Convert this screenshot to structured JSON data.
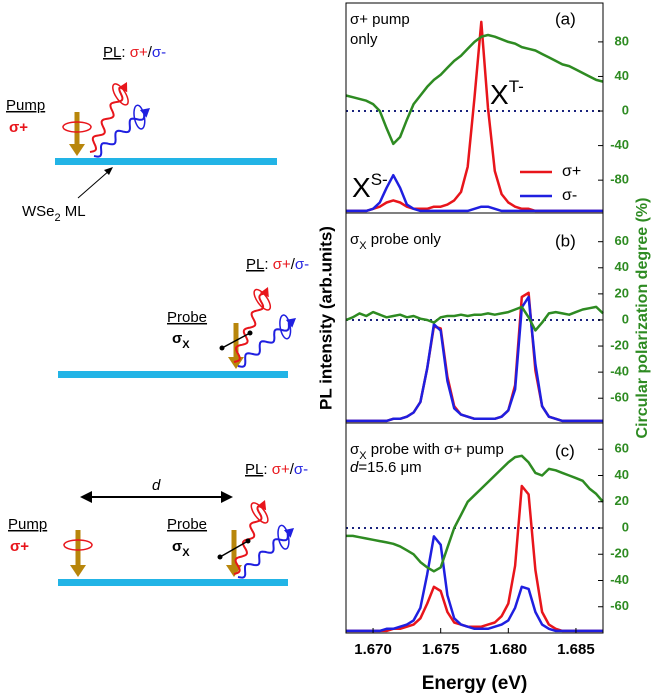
{
  "diagram": {
    "panels": [
      {
        "pl": "PL",
        "colon": ": ",
        "plus": "σ+",
        "slash": "/",
        "minus": "σ-",
        "pump": "Pump",
        "pump_sigma": "σ+",
        "material": "WSe",
        "material_sub": "2",
        "material_rest": " ML"
      },
      {
        "pl": "PL",
        "colon": ": ",
        "plus": "σ+",
        "slash": "/",
        "minus": "σ-",
        "probe": "Probe",
        "probe_sigma": "σ",
        "probe_sub": "X"
      },
      {
        "distance": "d",
        "pl": "PL",
        "colon": ": ",
        "plus": "σ+",
        "slash": "/",
        "minus": "σ-",
        "pump": "Pump",
        "pump_sigma": "σ+",
        "probe": "Probe",
        "probe_sigma": "σ",
        "probe_sub": "X"
      }
    ]
  },
  "chart_data": [
    {
      "type": "line",
      "title_lines": [
        "σ+ pump",
        "only"
      ],
      "panel_label": "(a)",
      "peak_labels": [
        {
          "text": "X",
          "sup": "T-"
        },
        {
          "text": "X",
          "sup": "S-"
        }
      ],
      "ylabel": "PL intensity (arb.units)",
      "y2label": "Circular polarization degree (%)",
      "legend": "lower right",
      "x": [
        1.668,
        1.6685,
        1.669,
        1.6695,
        1.67,
        1.6705,
        1.671,
        1.6715,
        1.672,
        1.6725,
        1.673,
        1.6735,
        1.674,
        1.6745,
        1.675,
        1.6755,
        1.676,
        1.6765,
        1.677,
        1.6775,
        1.678,
        1.6785,
        1.679,
        1.6795,
        1.68,
        1.6805,
        1.681,
        1.6815,
        1.682,
        1.6825,
        1.683,
        1.6835,
        1.684,
        1.6845,
        1.685,
        1.6855,
        1.686,
        1.6865,
        1.687
      ],
      "xlim": [
        1.668,
        1.687
      ],
      "ylim": [
        0,
        100
      ],
      "y2lim": [
        -118,
        125
      ],
      "y2ticks": [
        80,
        40,
        0,
        -40,
        -80
      ],
      "series": [
        {
          "name": "σ+",
          "color": "#e8151b",
          "values": [
            1,
            1,
            1,
            1,
            2,
            3,
            5,
            6,
            5,
            3,
            2,
            2,
            2,
            3,
            3,
            4,
            6,
            10,
            22,
            55,
            91,
            50,
            20,
            9,
            5,
            3,
            2,
            2,
            1,
            1,
            1,
            1,
            1,
            1,
            1,
            1,
            1,
            1,
            1
          ]
        },
        {
          "name": "σ-",
          "color": "#1f1fe0",
          "values": [
            1,
            1,
            1,
            1,
            2,
            5,
            12,
            18,
            12,
            4,
            2,
            1,
            1,
            1,
            1,
            1,
            1,
            1,
            1,
            2,
            3,
            3,
            2,
            1,
            1,
            1,
            1,
            1,
            1,
            1,
            1,
            1,
            1,
            1,
            1,
            1,
            1,
            1,
            1
          ]
        },
        {
          "color": "#2e8b22",
          "axis": "y2",
          "values": [
            18,
            16,
            14,
            12,
            8,
            0,
            -20,
            -38,
            -30,
            -10,
            8,
            18,
            28,
            36,
            42,
            50,
            58,
            64,
            72,
            80,
            86,
            88,
            86,
            83,
            80,
            78,
            74,
            72,
            70,
            66,
            62,
            58,
            54,
            52,
            48,
            44,
            40,
            36,
            34
          ]
        }
      ]
    },
    {
      "type": "line",
      "title": {
        "main": "σ",
        "sub": "X",
        "rest": " probe only"
      },
      "panel_label": "(b)",
      "x": [
        1.668,
        1.6685,
        1.669,
        1.6695,
        1.67,
        1.6705,
        1.671,
        1.6715,
        1.672,
        1.6725,
        1.673,
        1.6735,
        1.674,
        1.6745,
        1.675,
        1.6755,
        1.676,
        1.6765,
        1.677,
        1.6775,
        1.678,
        1.6785,
        1.679,
        1.6795,
        1.68,
        1.6805,
        1.681,
        1.6815,
        1.682,
        1.6825,
        1.683,
        1.6835,
        1.684,
        1.6845,
        1.685,
        1.6855,
        1.686,
        1.6865,
        1.687
      ],
      "xlim": [
        1.668,
        1.687
      ],
      "ylim": [
        0,
        100
      ],
      "y2lim": [
        -79,
        82
      ],
      "y2ticks": [
        60,
        40,
        20,
        0,
        -20,
        -40,
        -60
      ],
      "series": [
        {
          "color": "#e8151b",
          "values": [
            1,
            1,
            1,
            1,
            1,
            1,
            1,
            2,
            2,
            3,
            5,
            10,
            26,
            46,
            45,
            22,
            8,
            4,
            3,
            2,
            2,
            2,
            2,
            3,
            6,
            18,
            60,
            62,
            25,
            8,
            3,
            2,
            1,
            1,
            1,
            1,
            1,
            1,
            1
          ]
        },
        {
          "color": "#1f1fe0",
          "values": [
            1,
            1,
            1,
            1,
            1,
            1,
            1,
            2,
            2,
            3,
            5,
            10,
            26,
            47,
            44,
            20,
            7,
            4,
            3,
            2,
            2,
            2,
            2,
            3,
            6,
            16,
            55,
            60,
            28,
            8,
            3,
            2,
            1,
            1,
            1,
            1,
            1,
            1,
            1
          ]
        },
        {
          "color": "#2e8b22",
          "axis": "y2",
          "values": [
            0,
            2,
            5,
            3,
            6,
            4,
            2,
            3,
            4,
            2,
            3,
            1,
            0,
            -2,
            2,
            3,
            3,
            4,
            3,
            4,
            4,
            5,
            4,
            5,
            6,
            8,
            10,
            2,
            -8,
            -2,
            5,
            6,
            5,
            4,
            6,
            8,
            9,
            10,
            5
          ]
        }
      ]
    },
    {
      "type": "line",
      "title": {
        "main": "σ",
        "sub": "X",
        "rest": " probe with σ+ pump"
      },
      "note": {
        "italic": "d",
        "rest": "=15.6 μm"
      },
      "panel_label": "(c)",
      "xlabel": "Energy (eV)",
      "x": [
        1.668,
        1.6685,
        1.669,
        1.6695,
        1.67,
        1.6705,
        1.671,
        1.6715,
        1.672,
        1.6725,
        1.673,
        1.6735,
        1.674,
        1.6745,
        1.675,
        1.6755,
        1.676,
        1.6765,
        1.677,
        1.6775,
        1.678,
        1.6785,
        1.679,
        1.6795,
        1.68,
        1.6805,
        1.681,
        1.6815,
        1.682,
        1.6825,
        1.683,
        1.6835,
        1.684,
        1.6845,
        1.685,
        1.6855,
        1.686,
        1.6865,
        1.687
      ],
      "xlim": [
        1.668,
        1.687
      ],
      "xticks": [
        {
          "value": 1.67,
          "label": "1.670"
        },
        {
          "value": 1.675,
          "label": "1.675"
        },
        {
          "value": 1.68,
          "label": "1.680"
        },
        {
          "value": 1.685,
          "label": "1.685"
        }
      ],
      "ylim": [
        0,
        100
      ],
      "y2lim": [
        -80,
        80
      ],
      "y2ticks": [
        60,
        40,
        20,
        0,
        -20,
        -40,
        -60
      ],
      "series": [
        {
          "color": "#e8151b",
          "values": [
            1,
            1,
            1,
            1,
            1,
            1,
            1,
            2,
            2,
            3,
            4,
            7,
            14,
            22,
            20,
            10,
            5,
            4,
            3,
            3,
            3,
            4,
            5,
            8,
            14,
            32,
            70,
            66,
            30,
            10,
            4,
            2,
            1,
            1,
            1,
            1,
            1,
            1,
            1
          ]
        },
        {
          "color": "#1f1fe0",
          "values": [
            1,
            1,
            1,
            1,
            1,
            1,
            2,
            2,
            3,
            4,
            6,
            12,
            28,
            46,
            42,
            18,
            7,
            4,
            3,
            2,
            2,
            2,
            3,
            4,
            6,
            12,
            22,
            21,
            10,
            4,
            2,
            1,
            1,
            1,
            1,
            1,
            1,
            1,
            1
          ]
        },
        {
          "color": "#2e8b22",
          "axis": "y2",
          "values": [
            -6,
            -6,
            -7,
            -8,
            -9,
            -10,
            -11,
            -12,
            -14,
            -17,
            -20,
            -26,
            -30,
            -33,
            -30,
            -15,
            0,
            10,
            20,
            25,
            30,
            35,
            40,
            45,
            50,
            54,
            55,
            50,
            42,
            40,
            45,
            44,
            42,
            40,
            38,
            36,
            30,
            26,
            20
          ]
        }
      ]
    }
  ]
}
